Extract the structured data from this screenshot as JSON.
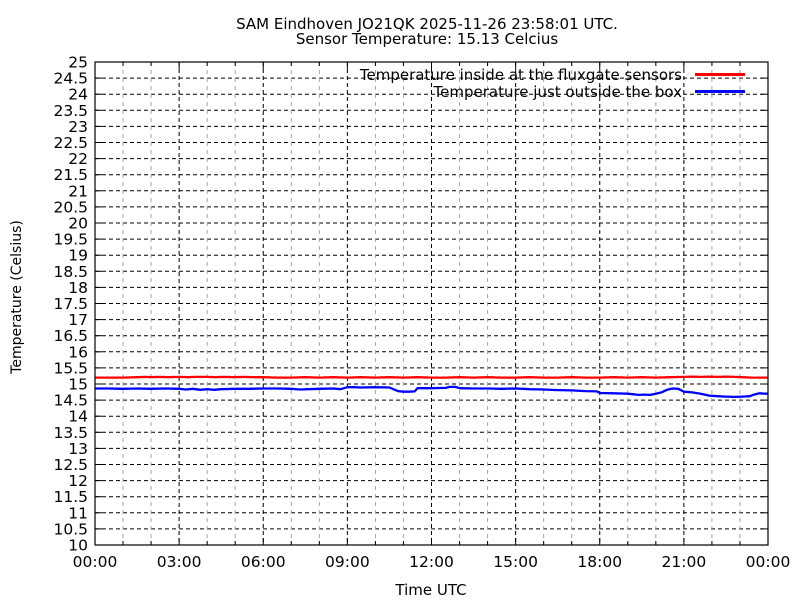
{
  "title": {
    "line1": "SAM Eindhoven JO21QK 2025-11-26 23:58:01 UTC.",
    "line2": "Sensor Temperature: 15.13 Celcius"
  },
  "chart_data": {
    "type": "line",
    "title": "SAM Eindhoven JO21QK 2025-11-26 23:58:01 UTC. Sensor Temperature: 15.13 Celcius",
    "xlabel": "Time UTC",
    "ylabel": "Temperature (Celsius)",
    "ylim": [
      10,
      25
    ],
    "y_tick_step": 0.5,
    "xlim_hours": [
      0,
      24
    ],
    "x_ticks": [
      {
        "hour": 0,
        "label": "00:00"
      },
      {
        "hour": 3,
        "label": "03:00"
      },
      {
        "hour": 6,
        "label": "06:00"
      },
      {
        "hour": 9,
        "label": "09:00"
      },
      {
        "hour": 12,
        "label": "12:00"
      },
      {
        "hour": 15,
        "label": "15:00"
      },
      {
        "hour": 18,
        "label": "18:00"
      },
      {
        "hour": 21,
        "label": "21:00"
      },
      {
        "hour": 24,
        "label": "00:00"
      }
    ],
    "minor_x_tick_every_hours": 1,
    "grid": {
      "h_gridline_color": "#000000",
      "major_v_gridline_color": "#000000",
      "minor_v_gridline_color": "#a6a6a6",
      "border_color": "#000000"
    },
    "legend_position": "top-right",
    "series": [
      {
        "name": "Temperature inside at the fluxgate sensors",
        "color": "#ff0000",
        "points": [
          [
            0,
            15.2
          ],
          [
            0.5,
            15.2
          ],
          [
            1,
            15.2
          ],
          [
            1.5,
            15.21
          ],
          [
            1.8,
            15.22
          ],
          [
            2,
            15.21
          ],
          [
            2.3,
            15.22
          ],
          [
            2.6,
            15.21
          ],
          [
            3,
            15.22
          ],
          [
            3.3,
            15.21
          ],
          [
            3.6,
            15.22
          ],
          [
            4,
            15.22
          ],
          [
            4.3,
            15.21
          ],
          [
            4.6,
            15.22
          ],
          [
            5,
            15.21
          ],
          [
            5.3,
            15.22
          ],
          [
            5.6,
            15.21
          ],
          [
            6,
            15.21
          ],
          [
            6.5,
            15.2
          ],
          [
            7,
            15.2
          ],
          [
            7.5,
            15.21
          ],
          [
            8,
            15.2
          ],
          [
            8.5,
            15.21
          ],
          [
            9,
            15.2
          ],
          [
            9.5,
            15.21
          ],
          [
            10,
            15.2
          ],
          [
            10.5,
            15.21
          ],
          [
            11,
            15.2
          ],
          [
            11.5,
            15.21
          ],
          [
            12,
            15.2
          ],
          [
            12.5,
            15.2
          ],
          [
            13,
            15.21
          ],
          [
            13.5,
            15.2
          ],
          [
            14,
            15.21
          ],
          [
            14.5,
            15.2
          ],
          [
            15,
            15.2
          ],
          [
            15.5,
            15.21
          ],
          [
            16,
            15.2
          ],
          [
            16.5,
            15.2
          ],
          [
            17,
            15.21
          ],
          [
            17.5,
            15.2
          ],
          [
            18,
            15.2
          ],
          [
            18.5,
            15.21
          ],
          [
            19,
            15.2
          ],
          [
            19.5,
            15.21
          ],
          [
            20,
            15.2
          ],
          [
            20.5,
            15.21
          ],
          [
            21,
            15.22
          ],
          [
            21.3,
            15.23
          ],
          [
            21.6,
            15.22
          ],
          [
            21.9,
            15.23
          ],
          [
            22.2,
            15.22
          ],
          [
            22.5,
            15.23
          ],
          [
            22.8,
            15.22
          ],
          [
            23.1,
            15.21
          ],
          [
            23.4,
            15.2
          ],
          [
            23.7,
            15.2
          ],
          [
            24,
            15.2
          ]
        ]
      },
      {
        "name": "Temperature just outside the box",
        "color": "#0000ff",
        "points": [
          [
            0,
            14.86
          ],
          [
            0.5,
            14.86
          ],
          [
            1,
            14.85
          ],
          [
            1.5,
            14.86
          ],
          [
            2,
            14.85
          ],
          [
            2.5,
            14.86
          ],
          [
            3,
            14.85
          ],
          [
            3.25,
            14.83
          ],
          [
            3.5,
            14.85
          ],
          [
            3.75,
            14.82
          ],
          [
            4,
            14.84
          ],
          [
            4.25,
            14.82
          ],
          [
            4.5,
            14.84
          ],
          [
            5,
            14.85
          ],
          [
            5.5,
            14.85
          ],
          [
            6,
            14.86
          ],
          [
            6.5,
            14.86
          ],
          [
            7,
            14.85
          ],
          [
            7.3,
            14.83
          ],
          [
            7.6,
            14.84
          ],
          [
            8,
            14.85
          ],
          [
            8.5,
            14.86
          ],
          [
            8.75,
            14.84
          ],
          [
            9,
            14.9
          ],
          [
            9.25,
            14.9
          ],
          [
            9.5,
            14.89
          ],
          [
            10,
            14.9
          ],
          [
            10.5,
            14.89
          ],
          [
            10.8,
            14.78
          ],
          [
            11,
            14.76
          ],
          [
            11.2,
            14.76
          ],
          [
            11.4,
            14.77
          ],
          [
            11.5,
            14.87
          ],
          [
            12,
            14.87
          ],
          [
            12.5,
            14.88
          ],
          [
            12.65,
            14.91
          ],
          [
            12.85,
            14.91
          ],
          [
            13,
            14.87
          ],
          [
            13.5,
            14.86
          ],
          [
            14,
            14.86
          ],
          [
            14.5,
            14.85
          ],
          [
            15,
            14.86
          ],
          [
            15.25,
            14.85
          ],
          [
            15.5,
            14.84
          ],
          [
            16,
            14.83
          ],
          [
            16.5,
            14.81
          ],
          [
            17,
            14.8
          ],
          [
            17.5,
            14.78
          ],
          [
            17.9,
            14.77
          ],
          [
            18,
            14.72
          ],
          [
            18.5,
            14.71
          ],
          [
            19,
            14.7
          ],
          [
            19.4,
            14.66
          ],
          [
            19.6,
            14.67
          ],
          [
            19.8,
            14.66
          ],
          [
            20,
            14.7
          ],
          [
            20.2,
            14.74
          ],
          [
            20.4,
            14.82
          ],
          [
            20.6,
            14.86
          ],
          [
            20.8,
            14.85
          ],
          [
            21,
            14.76
          ],
          [
            21.3,
            14.74
          ],
          [
            21.6,
            14.7
          ],
          [
            21.9,
            14.64
          ],
          [
            22.2,
            14.62
          ],
          [
            22.5,
            14.61
          ],
          [
            22.8,
            14.6
          ],
          [
            23.1,
            14.61
          ],
          [
            23.35,
            14.62
          ],
          [
            23.5,
            14.67
          ],
          [
            23.7,
            14.71
          ],
          [
            23.9,
            14.7
          ],
          [
            24,
            14.7
          ]
        ]
      }
    ]
  }
}
